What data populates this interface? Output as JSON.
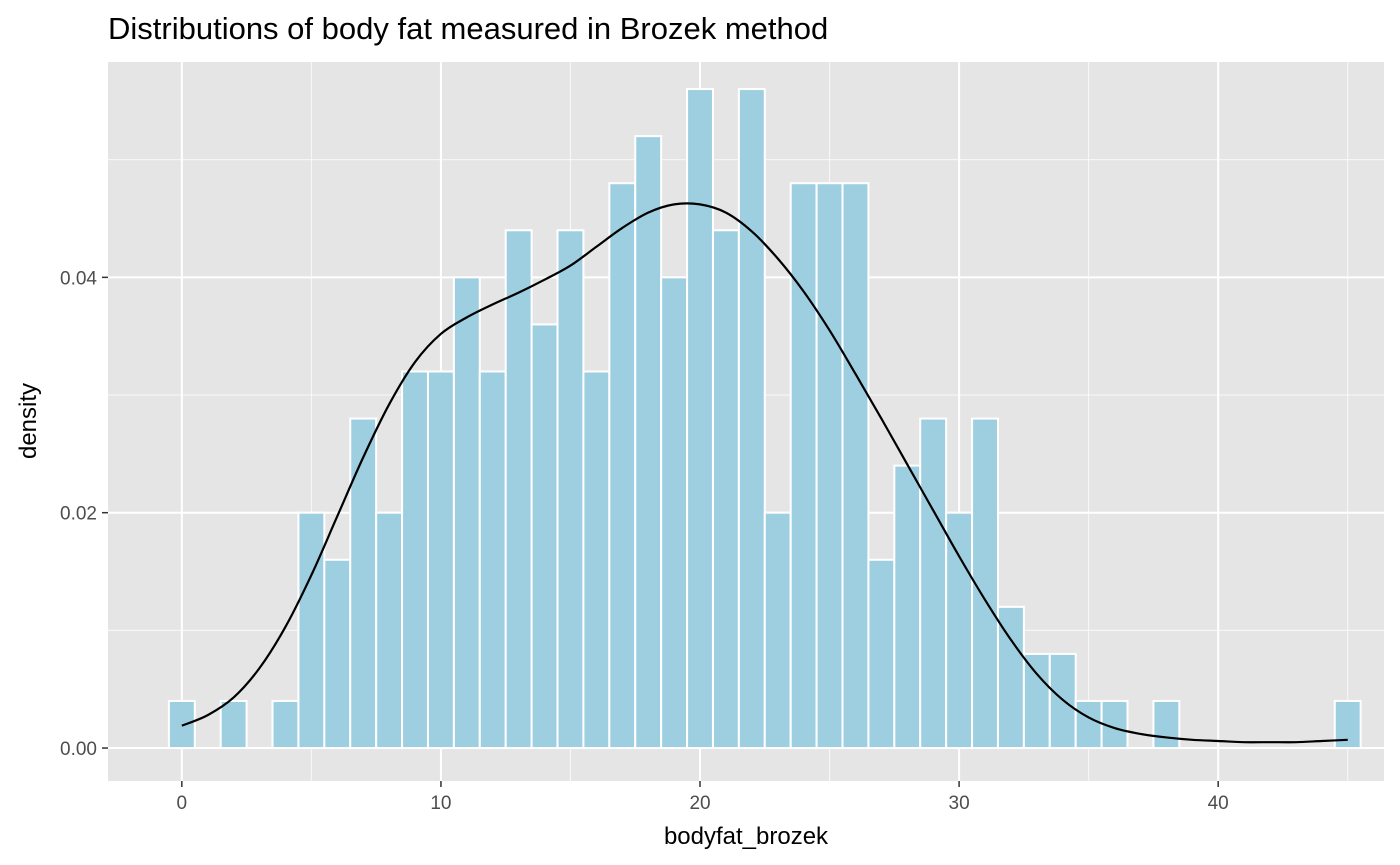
{
  "chart_data": {
    "type": "bar",
    "title": "Distributions of body fat measured in Brozek method",
    "xlabel": "bodyfat_brozek",
    "ylabel": "density",
    "xlim": [
      -2.85,
      46.4
    ],
    "ylim": [
      -0.0028,
      0.0583
    ],
    "x_ticks": [
      0,
      10,
      20,
      30,
      40
    ],
    "x_tick_labels": [
      "0",
      "10",
      "20",
      "30",
      "40"
    ],
    "y_ticks": [
      0.0,
      0.02,
      0.04
    ],
    "y_tick_labels": [
      "0.00",
      "0.02",
      "0.04"
    ],
    "grid": true,
    "legend": "none",
    "bin_width": 1.0,
    "histogram": {
      "name": "",
      "bin_centers": [
        0,
        2,
        4,
        5,
        6,
        7,
        8,
        9,
        10,
        11,
        12,
        13,
        14,
        15,
        16,
        17,
        18,
        19,
        20,
        21,
        22,
        23,
        24,
        25,
        26,
        27,
        28,
        29,
        30,
        31,
        32,
        33,
        34,
        35,
        36,
        38,
        45
      ],
      "values": [
        0.004,
        0.004,
        0.004,
        0.02,
        0.016,
        0.028,
        0.02,
        0.032,
        0.032,
        0.04,
        0.032,
        0.044,
        0.036,
        0.044,
        0.032,
        0.048,
        0.052,
        0.04,
        0.056,
        0.044,
        0.056,
        0.02,
        0.048,
        0.048,
        0.048,
        0.016,
        0.024,
        0.028,
        0.02,
        0.028,
        0.012,
        0.008,
        0.008,
        0.004,
        0.004,
        0.004,
        0.004
      ]
    },
    "density_curve": {
      "name": "",
      "x": [
        0,
        1,
        2,
        3,
        4,
        5,
        6,
        7,
        8,
        9,
        10,
        11,
        12,
        13,
        14,
        15,
        16,
        17,
        18,
        19,
        20,
        21,
        22,
        23,
        24,
        25,
        26,
        27,
        28,
        29,
        30,
        31,
        32,
        33,
        34,
        35,
        36,
        37,
        38,
        39,
        40,
        41,
        42,
        43,
        44,
        45
      ],
      "y": [
        0.0019,
        0.0028,
        0.0043,
        0.0068,
        0.0103,
        0.0147,
        0.0197,
        0.0247,
        0.0292,
        0.0328,
        0.0352,
        0.0366,
        0.0377,
        0.0387,
        0.0398,
        0.041,
        0.0426,
        0.0442,
        0.0455,
        0.0462,
        0.0462,
        0.0455,
        0.0439,
        0.0416,
        0.0388,
        0.0355,
        0.0318,
        0.028,
        0.0241,
        0.0202,
        0.0163,
        0.0126,
        0.0092,
        0.0063,
        0.0041,
        0.0026,
        0.0017,
        0.0012,
        0.0009,
        0.0007,
        0.0006,
        0.0005,
        0.0005,
        0.0005,
        0.0006,
        0.0007
      ]
    },
    "colors": {
      "bar_fill": "#9ecfe1",
      "bar_outline": "#ffffff",
      "panel_background": "#e5e5e5",
      "grid": "#ffffff",
      "curve": "#000000",
      "tick_label": "#4d4d4d",
      "axis_tick": "#333333"
    }
  }
}
